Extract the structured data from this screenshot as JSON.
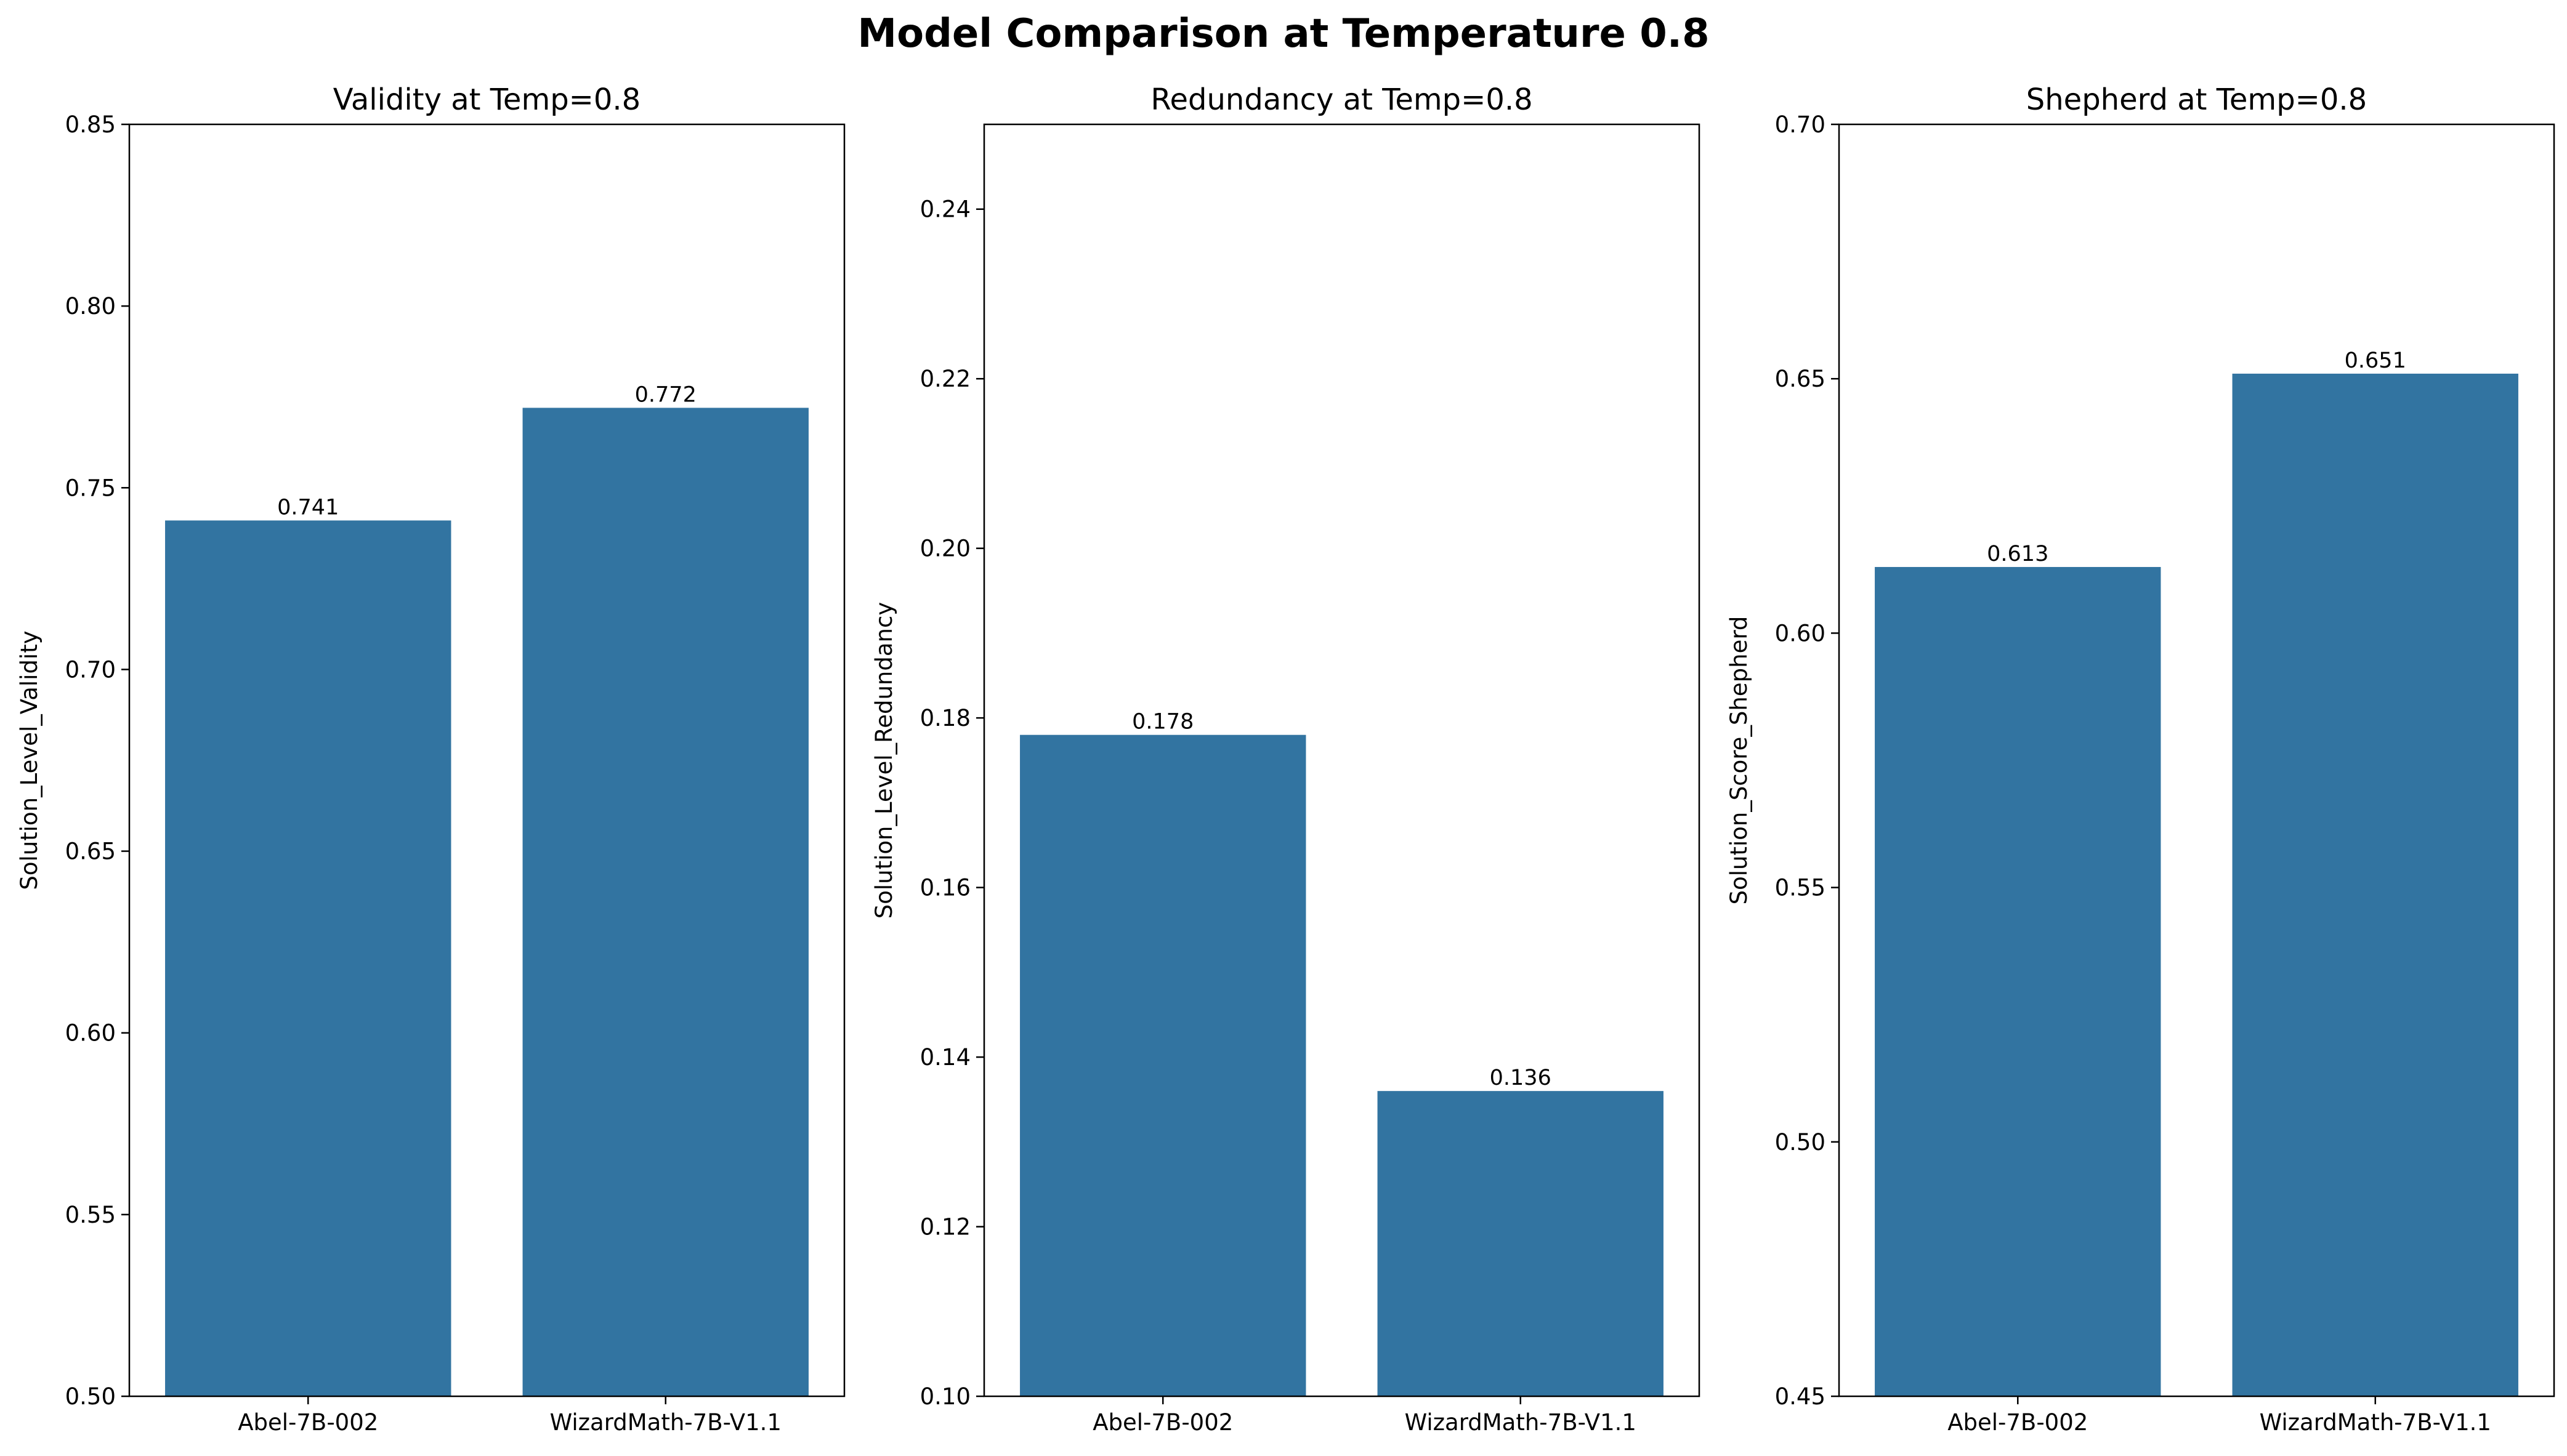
{
  "figure_title": "Model Comparison at Temperature 0.8",
  "colors": {
    "bar": "#3274a1",
    "axes": "#000000",
    "background": "#ffffff"
  },
  "chart_data": [
    {
      "type": "bar",
      "title": "Validity at Temp=0.8",
      "xlabel": "",
      "ylabel": "Solution_Level_Validity",
      "categories": [
        "Abel-7B-002",
        "WizardMath-7B-V1.1"
      ],
      "values": [
        0.741,
        0.772
      ],
      "value_labels": [
        "0.741",
        "0.772"
      ],
      "ylim": [
        0.5,
        0.85
      ],
      "yticks": [
        0.5,
        0.55,
        0.6,
        0.65,
        0.7,
        0.75,
        0.8,
        0.85
      ],
      "ytick_labels": [
        "0.50",
        "0.55",
        "0.60",
        "0.65",
        "0.70",
        "0.75",
        "0.80",
        "0.85"
      ],
      "grid": false
    },
    {
      "type": "bar",
      "title": "Redundancy at Temp=0.8",
      "xlabel": "",
      "ylabel": "Solution_Level_Redundancy",
      "categories": [
        "Abel-7B-002",
        "WizardMath-7B-V1.1"
      ],
      "values": [
        0.178,
        0.136
      ],
      "value_labels": [
        "0.178",
        "0.136"
      ],
      "ylim": [
        0.1,
        0.25
      ],
      "yticks": [
        0.1,
        0.12,
        0.14,
        0.16,
        0.18,
        0.2,
        0.22,
        0.24
      ],
      "ytick_labels": [
        "0.10",
        "0.12",
        "0.14",
        "0.16",
        "0.18",
        "0.20",
        "0.22",
        "0.24"
      ],
      "grid": false
    },
    {
      "type": "bar",
      "title": "Shepherd at Temp=0.8",
      "xlabel": "",
      "ylabel": "Solution_Score_Shepherd",
      "categories": [
        "Abel-7B-002",
        "WizardMath-7B-V1.1"
      ],
      "values": [
        0.613,
        0.651
      ],
      "value_labels": [
        "0.613",
        "0.651"
      ],
      "ylim": [
        0.45,
        0.7
      ],
      "yticks": [
        0.45,
        0.5,
        0.55,
        0.6,
        0.65,
        0.7
      ],
      "ytick_labels": [
        "0.45",
        "0.50",
        "0.55",
        "0.60",
        "0.65",
        "0.70"
      ],
      "grid": false
    }
  ]
}
